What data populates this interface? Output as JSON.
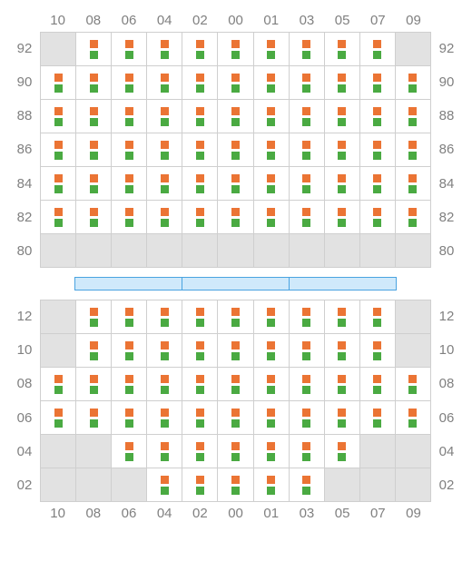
{
  "colors": {
    "filled_bg": "#ffffff",
    "empty_bg": "#e2e2e2",
    "border": "#cfcfcf",
    "label": "#808080",
    "square_orange": "#eb7434",
    "square_green": "#4aaa42",
    "stage_fill": "#cfe9fb",
    "stage_border": "#4aa3e0"
  },
  "col_labels": [
    "10",
    "08",
    "06",
    "04",
    "02",
    "00",
    "01",
    "03",
    "05",
    "07",
    "09"
  ],
  "cell_size": {
    "w": 38,
    "h": 38,
    "square": 9,
    "gap": 3
  },
  "stage": {
    "segments": 3,
    "segment_w": 117,
    "h": 13
  },
  "top": {
    "row_labels": [
      "92",
      "90",
      "88",
      "86",
      "84",
      "82",
      "80"
    ],
    "grid": [
      [
        0,
        1,
        1,
        1,
        1,
        1,
        1,
        1,
        1,
        1,
        0
      ],
      [
        1,
        1,
        1,
        1,
        1,
        1,
        1,
        1,
        1,
        1,
        1
      ],
      [
        1,
        1,
        1,
        1,
        1,
        1,
        1,
        1,
        1,
        1,
        1
      ],
      [
        1,
        1,
        1,
        1,
        1,
        1,
        1,
        1,
        1,
        1,
        1
      ],
      [
        1,
        1,
        1,
        1,
        1,
        1,
        1,
        1,
        1,
        1,
        1
      ],
      [
        1,
        1,
        1,
        1,
        1,
        1,
        1,
        1,
        1,
        1,
        1
      ],
      [
        0,
        0,
        0,
        0,
        0,
        0,
        0,
        0,
        0,
        0,
        0
      ]
    ]
  },
  "bottom": {
    "row_labels": [
      "12",
      "10",
      "08",
      "06",
      "04",
      "02"
    ],
    "grid": [
      [
        0,
        1,
        1,
        1,
        1,
        1,
        1,
        1,
        1,
        1,
        0
      ],
      [
        0,
        1,
        1,
        1,
        1,
        1,
        1,
        1,
        1,
        1,
        0
      ],
      [
        1,
        1,
        1,
        1,
        1,
        1,
        1,
        1,
        1,
        1,
        1
      ],
      [
        1,
        1,
        1,
        1,
        1,
        1,
        1,
        1,
        1,
        1,
        1
      ],
      [
        0,
        0,
        1,
        1,
        1,
        1,
        1,
        1,
        1,
        0,
        0
      ],
      [
        0,
        0,
        0,
        1,
        1,
        1,
        1,
        1,
        0,
        0,
        0
      ]
    ]
  }
}
